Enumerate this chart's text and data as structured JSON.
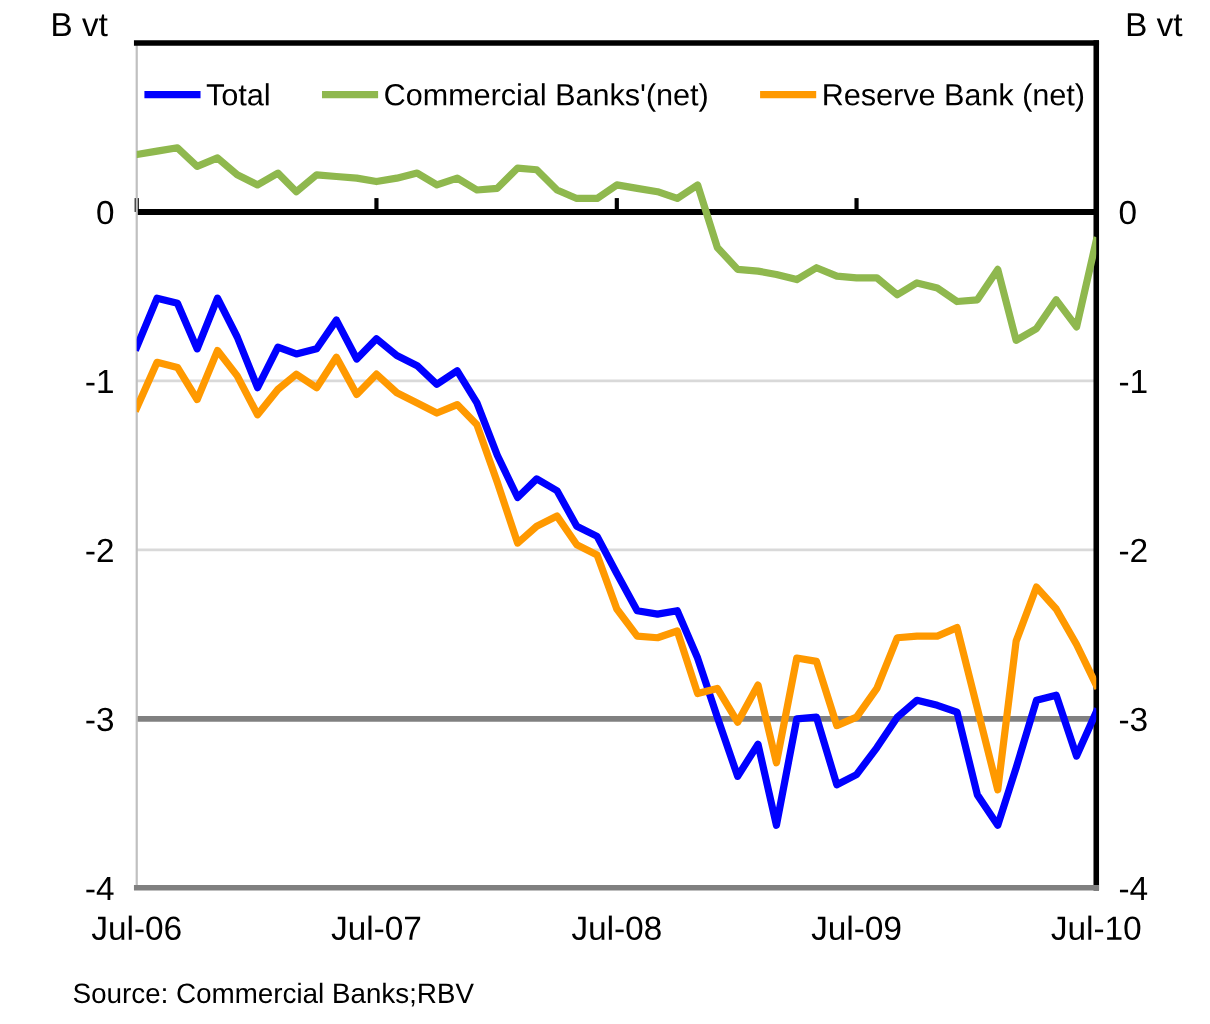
{
  "chart_data": {
    "type": "line",
    "x": [
      "2006-07",
      "2006-08",
      "2006-09",
      "2006-10",
      "2006-11",
      "2006-12",
      "2007-01",
      "2007-02",
      "2007-03",
      "2007-04",
      "2007-05",
      "2007-06",
      "2007-07",
      "2007-08",
      "2007-09",
      "2007-10",
      "2007-11",
      "2007-12",
      "2008-01",
      "2008-02",
      "2008-03",
      "2008-04",
      "2008-05",
      "2008-06",
      "2008-07",
      "2008-08",
      "2008-09",
      "2008-10",
      "2008-11",
      "2008-12",
      "2009-01",
      "2009-02",
      "2009-03",
      "2009-04",
      "2009-05",
      "2009-06",
      "2009-07",
      "2009-08",
      "2009-09",
      "2009-10",
      "2009-11",
      "2009-12",
      "2010-01",
      "2010-02",
      "2010-03",
      "2010-04",
      "2010-05",
      "2010-06",
      "2010-07"
    ],
    "series": [
      {
        "name": "Total",
        "color": "#0000ff",
        "values": [
          -0.8,
          -0.51,
          -0.54,
          -0.81,
          -0.51,
          -0.74,
          -1.04,
          -0.8,
          -0.84,
          -0.81,
          -0.64,
          -0.87,
          -0.75,
          -0.85,
          -0.91,
          -1.02,
          -0.94,
          -1.13,
          -1.44,
          -1.69,
          -1.58,
          -1.65,
          -1.86,
          -1.92,
          -2.14,
          -2.36,
          -2.38,
          -2.36,
          -2.64,
          -2.99,
          -3.34,
          -3.15,
          -3.63,
          -3.0,
          -2.99,
          -3.39,
          -3.33,
          -3.17,
          -2.99,
          -2.89,
          -2.92,
          -2.96,
          -3.45,
          -3.63,
          -3.29,
          -2.89,
          -2.86,
          -3.22,
          -2.96
        ]
      },
      {
        "name": "Commercial Banks'(net)",
        "color": "#8fb84e",
        "values": [
          0.34,
          0.36,
          0.38,
          0.27,
          0.32,
          0.22,
          0.16,
          0.23,
          0.12,
          0.22,
          0.21,
          0.2,
          0.18,
          0.2,
          0.23,
          0.16,
          0.2,
          0.13,
          0.14,
          0.26,
          0.25,
          0.13,
          0.08,
          0.08,
          0.16,
          0.14,
          0.12,
          0.08,
          0.16,
          -0.21,
          -0.34,
          -0.35,
          -0.37,
          -0.4,
          -0.33,
          -0.38,
          -0.39,
          -0.39,
          -0.49,
          -0.42,
          -0.45,
          -0.53,
          -0.52,
          -0.34,
          -0.76,
          -0.69,
          -0.52,
          -0.68,
          -0.17
        ]
      },
      {
        "name": "Reserve Bank (net)",
        "color": "#ff9900",
        "values": [
          -1.16,
          -0.89,
          -0.92,
          -1.11,
          -0.82,
          -0.97,
          -1.2,
          -1.05,
          -0.96,
          -1.04,
          -0.86,
          -1.08,
          -0.96,
          -1.07,
          -1.13,
          -1.19,
          -1.14,
          -1.26,
          -1.6,
          -1.96,
          -1.86,
          -1.8,
          -1.97,
          -2.03,
          -2.35,
          -2.51,
          -2.52,
          -2.48,
          -2.85,
          -2.82,
          -3.02,
          -2.8,
          -3.26,
          -2.64,
          -2.66,
          -3.04,
          -2.99,
          -2.82,
          -2.52,
          -2.51,
          -2.51,
          -2.46,
          -2.94,
          -3.42,
          -2.54,
          -2.22,
          -2.35,
          -2.56,
          -2.8
        ]
      }
    ],
    "xlim": [
      "2006-07",
      "2010-07"
    ],
    "xticks": [
      {
        "value": "2006-07",
        "label": "Jul-06"
      },
      {
        "value": "2007-07",
        "label": "Jul-07"
      },
      {
        "value": "2008-07",
        "label": "Jul-08"
      },
      {
        "value": "2009-07",
        "label": "Jul-09"
      },
      {
        "value": "2010-07",
        "label": "Jul-10"
      }
    ],
    "ylim": [
      -4,
      1
    ],
    "yticks": [
      -4,
      -3,
      -2,
      -1,
      0
    ],
    "y2lim": [
      -4,
      1
    ],
    "y2ticks": [
      -4,
      -3,
      -2,
      -1,
      0
    ],
    "ylabel": "B vt",
    "y2label": "B vt",
    "ref_lines": [
      {
        "axis": "y",
        "value": 0,
        "color": "#000000"
      },
      {
        "axis": "y",
        "value": -3,
        "color": "#808080"
      }
    ],
    "grid": "y",
    "legend": "top",
    "line_style": "solid",
    "annotations": [
      "Source: Commercial Banks;RBV"
    ]
  }
}
